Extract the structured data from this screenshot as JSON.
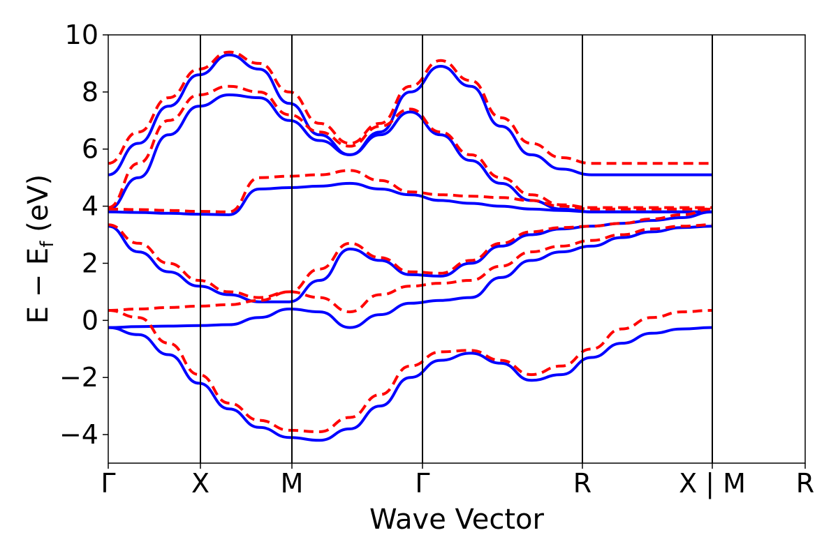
{
  "chart_data": {
    "type": "line",
    "xlabel": "Wave Vector",
    "ylabel_main": "E − E",
    "ylabel_sub": "f",
    "ylabel_unit": " (eV)",
    "ylim": [
      -5,
      10
    ],
    "yticks": [
      {
        "value": -4,
        "label": "−4"
      },
      {
        "value": -2,
        "label": "−2"
      },
      {
        "value": 0,
        "label": "0"
      },
      {
        "value": 2,
        "label": "2"
      },
      {
        "value": 4,
        "label": "4"
      },
      {
        "value": 6,
        "label": "6"
      },
      {
        "value": 8,
        "label": "8"
      },
      {
        "value": 10,
        "label": "10"
      }
    ],
    "xticks": [
      "Γ",
      "X",
      "M",
      "Γ",
      "R",
      "X | M",
      "R"
    ],
    "grid": false,
    "series": [
      {
        "style": "solid",
        "color": "#0000ff",
        "bands": [
          {
            "x": [
              0.0,
              0.05,
              0.1,
              0.15,
              0.2,
              0.25,
              0.3,
              0.35,
              0.4,
              0.45,
              0.5,
              0.55,
              0.6,
              0.65,
              0.7,
              0.75,
              0.8,
              0.85,
              0.9,
              0.95,
              1.0
            ],
            "y": [
              -0.25,
              -0.5,
              -1.2,
              -2.2,
              -3.1,
              -3.75,
              -4.1,
              -4.2,
              -3.8,
              -3.0,
              -2.0,
              -1.4,
              -1.15,
              -1.5,
              -2.1,
              -1.9,
              -1.3,
              -0.8,
              -0.45,
              -0.3,
              -0.25
            ]
          },
          {
            "x": [
              0.0,
              0.05,
              0.1,
              0.15,
              0.2,
              0.25,
              0.3,
              0.35,
              0.4,
              0.45,
              0.5,
              0.55,
              0.6,
              0.65,
              0.7,
              0.75,
              0.8,
              0.85,
              0.9,
              0.95,
              1.0
            ],
            "y": [
              -0.25,
              -0.22,
              -0.2,
              -0.18,
              -0.15,
              0.1,
              0.4,
              0.3,
              -0.25,
              0.2,
              0.6,
              0.7,
              0.8,
              1.5,
              2.1,
              2.4,
              2.6,
              2.9,
              3.1,
              3.25,
              3.3
            ]
          },
          {
            "x": [
              0.0,
              0.05,
              0.1,
              0.15,
              0.2,
              0.25,
              0.3,
              0.35,
              0.4,
              0.45,
              0.5,
              0.55,
              0.6,
              0.65,
              0.7,
              0.75,
              0.8,
              0.85,
              0.9,
              0.95,
              1.0
            ],
            "y": [
              3.3,
              2.4,
              1.7,
              1.2,
              0.9,
              0.65,
              0.65,
              1.4,
              2.5,
              2.1,
              1.6,
              1.55,
              2.0,
              2.6,
              3.0,
              3.2,
              3.3,
              3.4,
              3.5,
              3.6,
              3.8
            ]
          },
          {
            "x": [
              0.0,
              0.05,
              0.1,
              0.15,
              0.2,
              0.25,
              0.3,
              0.35,
              0.4,
              0.45,
              0.5,
              0.55,
              0.6,
              0.65,
              0.7,
              0.75,
              0.8,
              0.85,
              0.9,
              0.95,
              1.0
            ],
            "y": [
              3.8,
              3.78,
              3.75,
              3.72,
              3.7,
              4.6,
              4.65,
              4.7,
              4.8,
              4.6,
              4.4,
              4.2,
              4.1,
              4.0,
              3.9,
              3.85,
              3.8,
              3.8,
              3.8,
              3.8,
              3.8
            ]
          },
          {
            "x": [
              0.0,
              0.05,
              0.1,
              0.15,
              0.2,
              0.25,
              0.3,
              0.35,
              0.4,
              0.45,
              0.5,
              0.55,
              0.6,
              0.65,
              0.7,
              0.75,
              0.8,
              0.85,
              0.9,
              0.95,
              1.0
            ],
            "y": [
              3.9,
              5.0,
              6.5,
              7.5,
              7.9,
              7.8,
              7.0,
              6.3,
              5.8,
              6.5,
              7.3,
              6.5,
              5.6,
              4.8,
              4.2,
              3.9,
              3.8,
              3.8,
              3.8,
              3.8,
              3.8
            ]
          },
          {
            "x": [
              0.0,
              0.05,
              0.1,
              0.15,
              0.2,
              0.25,
              0.3,
              0.35,
              0.4,
              0.45,
              0.5,
              0.55,
              0.6,
              0.65,
              0.7,
              0.75,
              0.8,
              0.85,
              0.9,
              0.95,
              1.0
            ],
            "y": [
              5.1,
              6.2,
              7.5,
              8.6,
              9.3,
              8.8,
              7.6,
              6.5,
              5.8,
              6.6,
              8.0,
              8.9,
              8.2,
              6.8,
              5.8,
              5.3,
              5.1,
              5.1,
              5.1,
              5.1,
              5.1
            ]
          }
        ]
      },
      {
        "style": "dashed",
        "color": "#ff0000",
        "bands": [
          {
            "x": [
              0.0,
              0.05,
              0.1,
              0.15,
              0.2,
              0.25,
              0.3,
              0.35,
              0.4,
              0.45,
              0.5,
              0.55,
              0.6,
              0.65,
              0.7,
              0.75,
              0.8,
              0.85,
              0.9,
              0.95,
              1.0
            ],
            "y": [
              0.35,
              0.1,
              -0.8,
              -1.9,
              -2.9,
              -3.5,
              -3.85,
              -3.9,
              -3.4,
              -2.6,
              -1.6,
              -1.1,
              -1.05,
              -1.4,
              -1.9,
              -1.6,
              -1.0,
              -0.3,
              0.1,
              0.3,
              0.35
            ]
          },
          {
            "x": [
              0.0,
              0.05,
              0.1,
              0.15,
              0.2,
              0.25,
              0.3,
              0.35,
              0.4,
              0.45,
              0.5,
              0.55,
              0.6,
              0.65,
              0.7,
              0.75,
              0.8,
              0.85,
              0.9,
              0.95,
              1.0
            ],
            "y": [
              0.35,
              0.4,
              0.45,
              0.5,
              0.55,
              0.7,
              1.0,
              0.8,
              0.3,
              0.9,
              1.2,
              1.3,
              1.4,
              1.9,
              2.4,
              2.6,
              2.8,
              3.0,
              3.2,
              3.3,
              3.35
            ]
          },
          {
            "x": [
              0.0,
              0.05,
              0.1,
              0.15,
              0.2,
              0.25,
              0.3,
              0.35,
              0.4,
              0.45,
              0.5,
              0.55,
              0.6,
              0.65,
              0.7,
              0.75,
              0.8,
              0.85,
              0.9,
              0.95,
              1.0
            ],
            "y": [
              3.35,
              2.7,
              2.0,
              1.4,
              1.0,
              0.8,
              1.0,
              1.8,
              2.7,
              2.2,
              1.7,
              1.65,
              2.1,
              2.7,
              3.1,
              3.25,
              3.3,
              3.4,
              3.55,
              3.7,
              3.9
            ]
          },
          {
            "x": [
              0.0,
              0.05,
              0.1,
              0.15,
              0.2,
              0.25,
              0.3,
              0.35,
              0.4,
              0.45,
              0.5,
              0.55,
              0.6,
              0.65,
              0.7,
              0.75,
              0.8,
              0.85,
              0.9,
              0.95,
              1.0
            ],
            "y": [
              3.9,
              3.88,
              3.85,
              3.82,
              3.8,
              5.0,
              5.05,
              5.1,
              5.25,
              4.9,
              4.5,
              4.4,
              4.35,
              4.3,
              4.2,
              4.0,
              3.9,
              3.9,
              3.9,
              3.9,
              3.9
            ]
          },
          {
            "x": [
              0.0,
              0.05,
              0.1,
              0.15,
              0.2,
              0.25,
              0.3,
              0.35,
              0.4,
              0.45,
              0.5,
              0.55,
              0.6,
              0.65,
              0.7,
              0.75,
              0.8,
              0.85,
              0.9,
              0.95,
              1.0
            ],
            "y": [
              3.95,
              5.5,
              7.0,
              7.9,
              8.2,
              8.0,
              7.2,
              6.6,
              6.1,
              6.8,
              7.4,
              6.6,
              5.8,
              5.0,
              4.4,
              4.05,
              3.95,
              3.95,
              3.95,
              3.95,
              3.95
            ]
          },
          {
            "x": [
              0.0,
              0.05,
              0.1,
              0.15,
              0.2,
              0.25,
              0.3,
              0.35,
              0.4,
              0.45,
              0.5,
              0.55,
              0.6,
              0.65,
              0.7,
              0.75,
              0.8,
              0.85,
              0.9,
              0.95,
              1.0
            ],
            "y": [
              5.5,
              6.6,
              7.8,
              8.8,
              9.4,
              9.0,
              8.0,
              6.9,
              6.2,
              6.9,
              8.2,
              9.1,
              8.4,
              7.1,
              6.2,
              5.7,
              5.5,
              5.5,
              5.5,
              5.5,
              5.5
            ]
          }
        ]
      }
    ]
  }
}
